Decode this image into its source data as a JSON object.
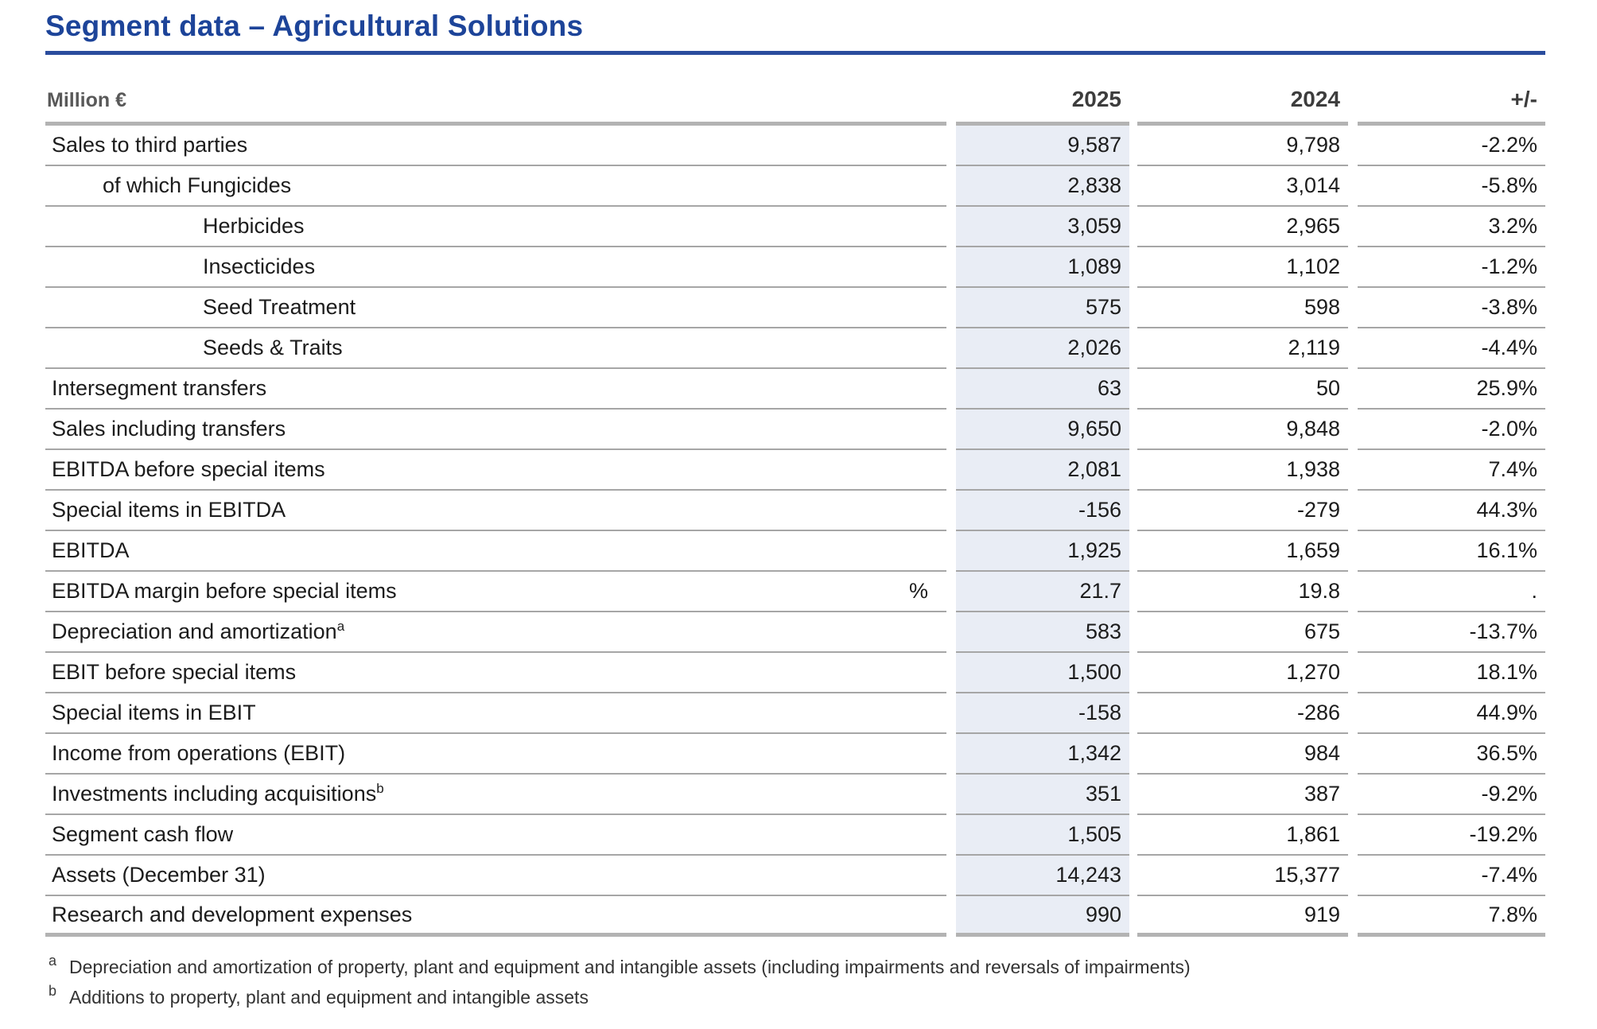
{
  "title": "Segment data – Agricultural Solutions",
  "table": {
    "unit_header": "Million €",
    "columns": [
      "2025",
      "2024",
      "+/-"
    ],
    "rows": [
      {
        "label": "Sales to third parties",
        "indent": 0,
        "sup": "",
        "unit": "",
        "values": [
          "9,587",
          "9,798",
          "-2.2%"
        ]
      },
      {
        "label": "of which Fungicides",
        "indent": 1,
        "sup": "",
        "unit": "",
        "values": [
          "2,838",
          "3,014",
          "-5.8%"
        ]
      },
      {
        "label": "Herbicides",
        "indent": 2,
        "sup": "",
        "unit": "",
        "values": [
          "3,059",
          "2,965",
          "3.2%"
        ]
      },
      {
        "label": "Insecticides",
        "indent": 2,
        "sup": "",
        "unit": "",
        "values": [
          "1,089",
          "1,102",
          "-1.2%"
        ]
      },
      {
        "label": "Seed Treatment",
        "indent": 2,
        "sup": "",
        "unit": "",
        "values": [
          "575",
          "598",
          "-3.8%"
        ]
      },
      {
        "label": "Seeds & Traits",
        "indent": 2,
        "sup": "",
        "unit": "",
        "values": [
          "2,026",
          "2,119",
          "-4.4%"
        ]
      },
      {
        "label": "Intersegment transfers",
        "indent": 0,
        "sup": "",
        "unit": "",
        "values": [
          "63",
          "50",
          "25.9%"
        ]
      },
      {
        "label": "Sales including transfers",
        "indent": 0,
        "sup": "",
        "unit": "",
        "values": [
          "9,650",
          "9,848",
          "-2.0%"
        ]
      },
      {
        "label": "EBITDA before special items",
        "indent": 0,
        "sup": "",
        "unit": "",
        "values": [
          "2,081",
          "1,938",
          "7.4%"
        ]
      },
      {
        "label": "Special items in EBITDA",
        "indent": 0,
        "sup": "",
        "unit": "",
        "values": [
          "-156",
          "-279",
          "44.3%"
        ]
      },
      {
        "label": "EBITDA",
        "indent": 0,
        "sup": "",
        "unit": "",
        "values": [
          "1,925",
          "1,659",
          "16.1%"
        ]
      },
      {
        "label": "EBITDA margin before special items",
        "indent": 0,
        "sup": "",
        "unit": "%",
        "values": [
          "21.7",
          "19.8",
          "."
        ]
      },
      {
        "label": "Depreciation and amortization",
        "indent": 0,
        "sup": "a",
        "unit": "",
        "values": [
          "583",
          "675",
          "-13.7%"
        ]
      },
      {
        "label": "EBIT before special items",
        "indent": 0,
        "sup": "",
        "unit": "",
        "values": [
          "1,500",
          "1,270",
          "18.1%"
        ]
      },
      {
        "label": "Special items in EBIT",
        "indent": 0,
        "sup": "",
        "unit": "",
        "values": [
          "-158",
          "-286",
          "44.9%"
        ]
      },
      {
        "label": "Income from operations (EBIT)",
        "indent": 0,
        "sup": "",
        "unit": "",
        "values": [
          "1,342",
          "984",
          "36.5%"
        ]
      },
      {
        "label": "Investments including acquisitions",
        "indent": 0,
        "sup": "b",
        "unit": "",
        "values": [
          "351",
          "387",
          "-9.2%"
        ]
      },
      {
        "label": "Segment cash flow",
        "indent": 0,
        "sup": "",
        "unit": "",
        "values": [
          "1,505",
          "1,861",
          "-19.2%"
        ]
      },
      {
        "label": "Assets (December 31)",
        "indent": 0,
        "sup": "",
        "unit": "",
        "values": [
          "14,243",
          "15,377",
          "-7.4%"
        ]
      },
      {
        "label": "Research and development expenses",
        "indent": 0,
        "sup": "",
        "unit": "",
        "values": [
          "990",
          "919",
          "7.8%"
        ]
      }
    ]
  },
  "footnotes": [
    {
      "marker": "a",
      "text": "Depreciation and amortization of property, plant and equipment and intangible assets (including impairments and reversals of impairments)"
    },
    {
      "marker": "b",
      "text": "Additions to property, plant and equipment and intangible assets"
    }
  ],
  "colors": {
    "accent_blue": "#1d4499",
    "shaded_column": "#e9edf5",
    "rule_gray": "#b3b3b3"
  }
}
